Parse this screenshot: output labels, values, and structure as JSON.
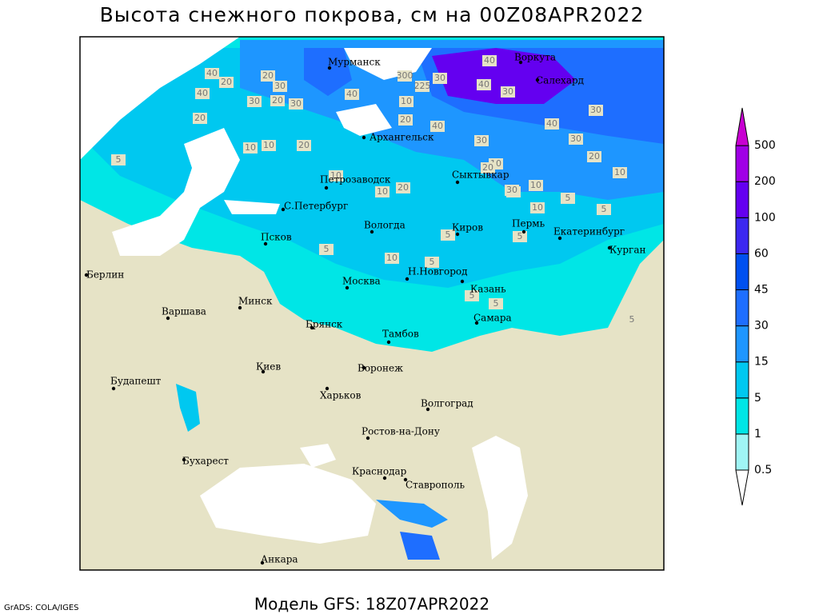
{
  "header": {
    "title": "Высота снежного покрова, см на 00Z08APR2022"
  },
  "footer": {
    "model": "Модель GFS: 18Z07APR2022",
    "credit": "GrADS: COLA/IGES"
  },
  "cities": [
    "Мурманск",
    "Воркута",
    "Салехард",
    "Архангельск",
    "Петрозаводск",
    "Сыктывкар",
    "С.Петербург",
    "Вологда",
    "Киров",
    "Пермь",
    "Екатеринбург",
    "Курган",
    "Псков",
    "Н.Новгород",
    "Берлин",
    "Москва",
    "Казань",
    "Варшава",
    "Минск",
    "Брянск",
    "Самара",
    "Тамбов",
    "Киев",
    "Воронеж",
    "Будапешт",
    "Харьков",
    "Волгоград",
    "Ростов-на-Дону",
    "Бухарест",
    "Краснодар",
    "Ставрополь",
    "Анкара"
  ],
  "contour_labels": [
    "40",
    "20",
    "40",
    "30",
    "20",
    "30",
    "20",
    "30",
    "40",
    "300",
    "225",
    "10",
    "30",
    "40",
    "40",
    "30",
    "20",
    "40",
    "40",
    "30",
    "20",
    "10",
    "10",
    "20",
    "30",
    "10",
    "10",
    "20",
    "10",
    "10",
    "20",
    "10",
    "10",
    "30",
    "10",
    "5",
    "5",
    "5",
    "10",
    "5",
    "5",
    "5",
    "5",
    "5",
    "5",
    "30",
    "20",
    "5"
  ],
  "legend": {
    "levels": [
      "0.5",
      "1",
      "5",
      "15",
      "30",
      "45",
      "60",
      "100",
      "200",
      "500"
    ],
    "colors": [
      "#ffffff",
      "#a0f5f5",
      "#00e6e6",
      "#00c8f0",
      "#1e96ff",
      "#1e6eff",
      "#0050f0",
      "#3c28f0",
      "#6400f0",
      "#a000e6",
      "#c800d2"
    ]
  }
}
